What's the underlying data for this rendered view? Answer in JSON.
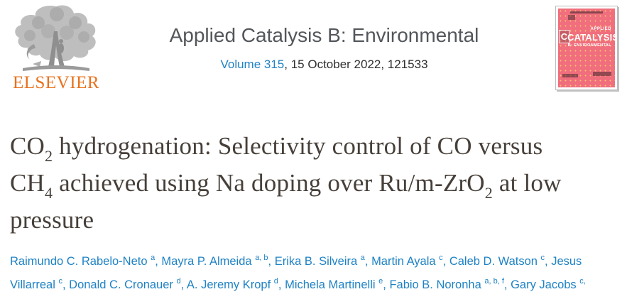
{
  "colors": {
    "link_blue": "#1e82c4",
    "elsevier_orange": "#e9711c",
    "journal_gray": "#53565a",
    "title_gray": "#47403a",
    "cover_pink": "#f06e7d",
    "cover_dots": "#fcc86e"
  },
  "banner": {
    "publisher_wordmark": "ELSEVIER",
    "journal_title": "Applied Catalysis B: Environmental",
    "volume_link": "Volume 315",
    "issue_rest": ", 15 October 2022, 121533"
  },
  "cover": {
    "applied_label": "APPLIED",
    "title": "CATALYSIS",
    "subtitle": "B: ENVIRONMENTAL",
    "logo_letter": "C"
  },
  "article": {
    "title_segments": [
      {
        "t": "CO"
      },
      {
        "t": "2",
        "sub": true
      },
      {
        "t": " hydrogenation: Selectivity control of CO versus CH"
      },
      {
        "t": "4",
        "sub": true
      },
      {
        "t": " achieved using Na doping over Ru/m-ZrO"
      },
      {
        "t": "2",
        "sub": true
      },
      {
        "t": " at low pressure"
      }
    ],
    "authors_segments": [
      {
        "t": "Raimundo C. Rabelo-Neto",
        "name": "author-name",
        "inter": true
      },
      {
        "t": " "
      },
      {
        "t": "a",
        "sup": true
      },
      {
        "t": ", "
      },
      {
        "t": "Mayra P. Almeida",
        "name": "author-name",
        "inter": true
      },
      {
        "t": " "
      },
      {
        "t": "a, b",
        "sup": true
      },
      {
        "t": ", "
      },
      {
        "t": "Erika B. Silveira",
        "name": "author-name",
        "inter": true
      },
      {
        "t": " "
      },
      {
        "t": "a",
        "sup": true
      },
      {
        "t": ", "
      },
      {
        "t": "Martin Ayala",
        "name": "author-name",
        "inter": true
      },
      {
        "t": " "
      },
      {
        "t": "c",
        "sup": true
      },
      {
        "t": ", "
      },
      {
        "t": "Caleb D. Watson",
        "name": "author-name",
        "inter": true
      },
      {
        "t": " "
      },
      {
        "t": "c",
        "sup": true
      },
      {
        "t": ", "
      },
      {
        "t": "Jesus Villarreal",
        "name": "author-name",
        "inter": true
      },
      {
        "t": " "
      },
      {
        "t": "c",
        "sup": true
      },
      {
        "t": ", "
      },
      {
        "t": "Donald C. Cronauer",
        "name": "author-name",
        "inter": true
      },
      {
        "t": " "
      },
      {
        "t": "d",
        "sup": true
      },
      {
        "t": ", "
      },
      {
        "t": "A. Jeremy Kropf",
        "name": "author-name",
        "inter": true
      },
      {
        "t": " "
      },
      {
        "t": "d",
        "sup": true
      },
      {
        "t": ", "
      },
      {
        "t": "Michela Martinelli",
        "name": "author-name",
        "inter": true
      },
      {
        "t": " "
      },
      {
        "t": "e",
        "sup": true
      },
      {
        "t": ", "
      },
      {
        "t": "Fabio B. Noronha",
        "name": "author-name",
        "inter": true
      },
      {
        "t": " "
      },
      {
        "t": "a, b, f",
        "sup": true
      },
      {
        "t": ", "
      },
      {
        "t": "Gary Jacobs",
        "name": "author-name",
        "inter": true
      },
      {
        "t": " "
      },
      {
        "t": "c,",
        "sup": true
      }
    ]
  }
}
